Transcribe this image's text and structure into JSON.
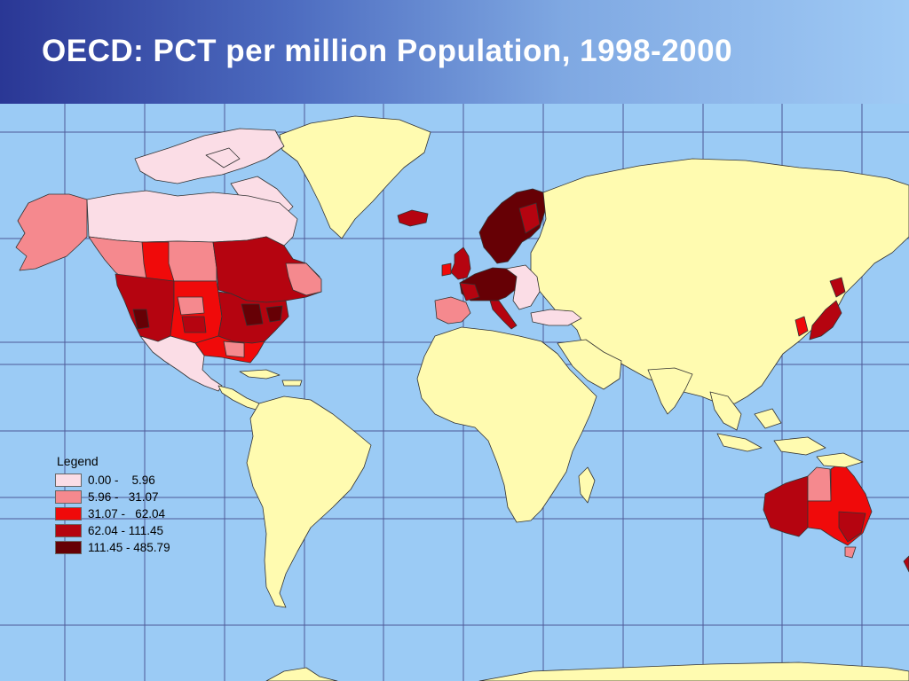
{
  "title": "OECD: PCT per million Population, 1998-2000",
  "colors": {
    "ocean": "#9bcbf5",
    "land": "#fffbb0",
    "border": "#333333",
    "grid": "#35347a",
    "title_gradient_start": "#2a3795",
    "title_gradient_end": "#9fcaf5"
  },
  "legend": {
    "title": "Legend",
    "classes": [
      {
        "label": "0.00 -    5.96",
        "min": 0.0,
        "max": 5.96,
        "color": "#fbdde6"
      },
      {
        "label": "5.96 -   31.07",
        "min": 5.96,
        "max": 31.07,
        "color": "#f5898e"
      },
      {
        "label": "31.07 -   62.04",
        "min": 31.07,
        "max": 62.04,
        "color": "#f00a0a"
      },
      {
        "label": "62.04 - 111.45",
        "min": 62.04,
        "max": 111.45,
        "color": "#b50410"
      },
      {
        "label": "111.45 - 485.79",
        "min": 111.45,
        "max": 485.79,
        "color": "#660005"
      }
    ]
  },
  "regions": [
    {
      "name": "Alaska",
      "class": 1
    },
    {
      "name": "Canada (north)",
      "class": 0
    },
    {
      "name": "Canada (prairies)",
      "class": 1
    },
    {
      "name": "Canada (Ontario/Quebec)",
      "class": 3
    },
    {
      "name": "Western USA",
      "class": 3
    },
    {
      "name": "Central USA",
      "class": 2
    },
    {
      "name": "Eastern USA",
      "class": 3
    },
    {
      "name": "Southeastern USA",
      "class": 2
    },
    {
      "name": "Mexico",
      "class": 0
    },
    {
      "name": "Greenland",
      "class": -1
    },
    {
      "name": "Iceland",
      "class": 3
    },
    {
      "name": "Scandinavia",
      "class": 4
    },
    {
      "name": "British Isles",
      "class": 3
    },
    {
      "name": "Western/Central Europe",
      "class": 4
    },
    {
      "name": "Iberia",
      "class": 1
    },
    {
      "name": "Italy",
      "class": 3
    },
    {
      "name": "Eastern Europe",
      "class": 0
    },
    {
      "name": "Turkey",
      "class": 0
    },
    {
      "name": "Japan",
      "class": 3
    },
    {
      "name": "South Korea",
      "class": 2
    },
    {
      "name": "Western Australia",
      "class": 3
    },
    {
      "name": "Northern Territory",
      "class": 1
    },
    {
      "name": "Eastern Australia",
      "class": 2
    },
    {
      "name": "New Zealand",
      "class": 3
    }
  ]
}
